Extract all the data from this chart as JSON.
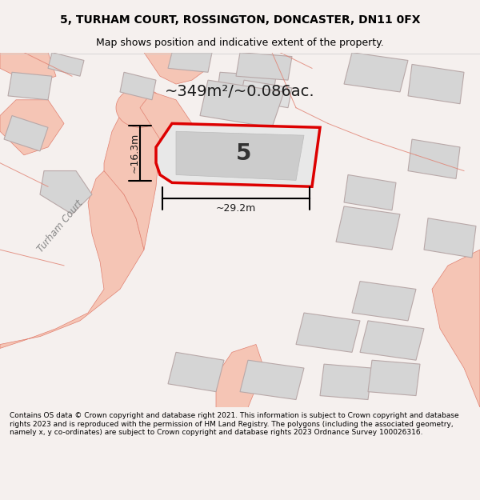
{
  "title": "5, TURHAM COURT, ROSSINGTON, DONCASTER, DN11 0FX",
  "subtitle": "Map shows position and indicative extent of the property.",
  "area_label": "~349m²/~0.086ac.",
  "plot_number": "5",
  "width_label": "~29.2m",
  "height_label": "~16.3m",
  "footer": "Contains OS data © Crown copyright and database right 2021. This information is subject to Crown copyright and database rights 2023 and is reproduced with the permission of HM Land Registry. The polygons (including the associated geometry, namely x, y co-ordinates) are subject to Crown copyright and database rights 2023 Ordnance Survey 100026316.",
  "bg_color": "#f5f0ee",
  "map_bg": "#ffffff",
  "footer_bg": "#ffffff",
  "plot_fill": "#e8e8e8",
  "plot_edge": "#dd0000",
  "building_fill": "#d0d0d0",
  "road_color": "#f0c0b0",
  "road_outline": "#e08070",
  "other_building_fill": "#d8d8d8",
  "other_building_edge": "#c0a0a0"
}
